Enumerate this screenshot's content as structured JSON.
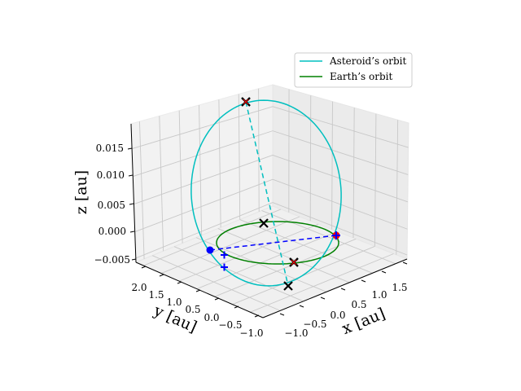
{
  "chart_data": {
    "type": "line",
    "projection": "3d",
    "xlabel": "$x$ [au]",
    "ylabel": "$y$ [au]",
    "zlabel": "$z$ [au]",
    "xlabel_text": "x [au]",
    "ylabel_text": "y [au]",
    "zlabel_text": "z [au]",
    "xlim": [
      -1.2,
      1.75
    ],
    "ylim": [
      -1.2,
      2.25
    ],
    "zlim": [
      -0.0062,
      0.019
    ],
    "x_ticks": [
      "−1.0",
      "−0.5",
      "0.0",
      "0.5",
      "1.0",
      "1.5"
    ],
    "y_ticks": [
      "−1.0",
      "−0.5",
      "0.0",
      "0.5",
      "1.0",
      "1.5",
      "2.0"
    ],
    "z_ticks": [
      "−0.005",
      "0.000",
      "0.005",
      "0.010",
      "0.015"
    ],
    "grid": true,
    "legend_position": "upper-right",
    "colors": {
      "asteroid": "#17becf",
      "earth": "#008000",
      "marker_x": "#000000",
      "red": "#ff0000",
      "blue": "#0000ff"
    },
    "series": [
      {
        "name": "Asteroid's orbit",
        "label_display": "Asteroid’s orbit",
        "color": "#00bfbf",
        "style": "solid"
      },
      {
        "name": "Earth's orbit",
        "label_display": "Earth’s orbit",
        "color": "#008000",
        "style": "solid"
      }
    ],
    "markers": [
      {
        "kind": "x-black-red",
        "x": -0.25,
        "y": -0.7,
        "z": 0.018
      },
      {
        "kind": "x-black-red",
        "x": 0.05,
        "y": -0.45,
        "z": 0.0
      },
      {
        "kind": "x-black",
        "x": 1.0,
        "y": -0.3,
        "z": 0.0
      },
      {
        "kind": "x-black",
        "x": -1.0,
        "y": 0.05,
        "z": 0.0
      },
      {
        "kind": "dot-red",
        "x": 0.5,
        "y": -0.7,
        "z": 0.0
      },
      {
        "kind": "dot-blue",
        "x": -0.35,
        "y": 1.3,
        "z": 0.0
      },
      {
        "kind": "plus-blue",
        "x": -0.1,
        "y": 1.25,
        "z": 0.0
      },
      {
        "kind": "plus-blue",
        "x": -0.3,
        "y": 1.5,
        "z": -0.0058
      }
    ]
  }
}
